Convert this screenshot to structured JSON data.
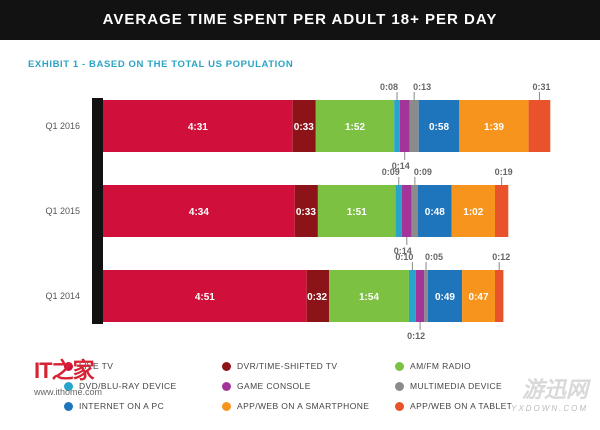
{
  "header": {
    "title": "AVERAGE TIME SPENT PER ADULT 18+ PER DAY"
  },
  "subtitle": "EXHIBIT 1 - BASED ON THE TOTAL US POPULATION",
  "chart_data": {
    "type": "bar",
    "orientation": "horizontal",
    "stacked": true,
    "title": "AVERAGE TIME SPENT PER ADULT 18+ PER DAY",
    "subtitle": "EXHIBIT 1 - BASED ON THE TOTAL US POPULATION",
    "units": "hours:minutes",
    "categories": [
      "Q1 2016",
      "Q1 2015",
      "Q1 2014"
    ],
    "series": [
      {
        "name": "LIVE TV",
        "color": "#d0103a",
        "values": [
          271,
          274,
          291
        ],
        "labels": [
          "4:31",
          "4:34",
          "4:51"
        ]
      },
      {
        "name": "DVR/TIME-SHIFTED TV",
        "color": "#8c1419",
        "values": [
          33,
          33,
          32
        ],
        "labels": [
          "0:33",
          "0:33",
          "0:32"
        ]
      },
      {
        "name": "AM/FM RADIO",
        "color": "#7dc142",
        "values": [
          112,
          111,
          114
        ],
        "labels": [
          "1:52",
          "1:51",
          "1:54"
        ]
      },
      {
        "name": "DVD/BLU-RAY DEVICE",
        "color": "#27a4c9",
        "values": [
          8,
          9,
          10
        ],
        "labels": [
          "0:08",
          "0:09",
          "0:10"
        ]
      },
      {
        "name": "GAME CONSOLE",
        "color": "#a3359a",
        "values": [
          14,
          14,
          12
        ],
        "labels": [
          "0:14",
          "0:14",
          "0:12"
        ]
      },
      {
        "name": "MULTIMEDIA DEVICE",
        "color": "#8b8b8b",
        "values": [
          13,
          9,
          5
        ],
        "labels": [
          "0:13",
          "0:09",
          "0:05"
        ]
      },
      {
        "name": "INTERNET ON A PC",
        "color": "#1e75bb",
        "values": [
          58,
          48,
          49
        ],
        "labels": [
          "0:58",
          "0:48",
          "0:49"
        ]
      },
      {
        "name": "APP/WEB ON A SMARTPHONE",
        "color": "#f7941d",
        "values": [
          99,
          62,
          47
        ],
        "labels": [
          "1:39",
          "1:02",
          "0:47"
        ]
      },
      {
        "name": "APP/WEB ON A TABLET",
        "color": "#e8532b",
        "values": [
          31,
          19,
          12
        ],
        "labels": [
          "0:31",
          "0:19",
          "0:12"
        ]
      }
    ]
  },
  "watermarks": {
    "left_logo_prefix": "IT",
    "left_logo_suffix": "之家",
    "left_url": "www.ithome.com",
    "right_logo": "游迅网",
    "right_url": "YXDOWN.COM"
  }
}
